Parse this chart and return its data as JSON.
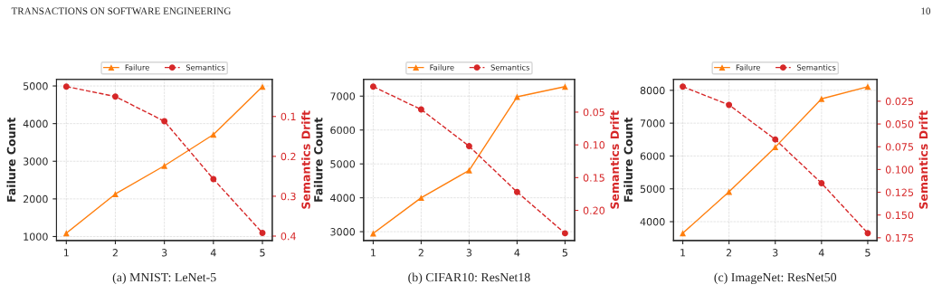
{
  "chart_data": [
    {
      "type": "line",
      "subtitle": "(a) MNIST: LeNet-5",
      "annotations": [
        "TRANSACTIONS ON SOFTWARE ENGINEERING"
      ],
      "ylabel": "Failure Count",
      "y2label": "Semantics Drift",
      "x": [
        1,
        2,
        3,
        4,
        5
      ],
      "xlim": [
        0.8,
        5.2
      ],
      "xticks": [
        1,
        2,
        3,
        4,
        5
      ],
      "ylim": [
        895,
        5175
      ],
      "yticks": [
        1000,
        2000,
        3000,
        4000,
        5000
      ],
      "y2lim": [
        0.411,
        0.007
      ],
      "y2ticks": [
        0.1,
        0.2,
        0.3,
        0.4
      ],
      "grid": true,
      "legend": "top",
      "series": [
        {
          "name": "Failure",
          "color": "#ff7f0e",
          "marker": "triangle",
          "line_style": "solid",
          "values": [
            1090,
            2130,
            2880,
            3710,
            4980
          ]
        },
        {
          "name": "Semantics",
          "color": "#d62728",
          "marker": "circle",
          "line_style": "dashed",
          "axis": "y2",
          "values": [
            0.025,
            0.05,
            0.112,
            0.257,
            0.392
          ]
        }
      ]
    },
    {
      "type": "line",
      "subtitle": "(b) CIFAR10: ResNet18",
      "ylabel": "Failure Count",
      "y2label": "Semantics Drift",
      "x": [
        1,
        2,
        3,
        4,
        5
      ],
      "xlim": [
        0.8,
        5.2
      ],
      "xticks": [
        1,
        2,
        3,
        4,
        5
      ],
      "ylim": [
        2740,
        7494
      ],
      "yticks": [
        3000,
        4000,
        5000,
        6000,
        7000
      ],
      "y2lim": [
        0.246,
        0.0
      ],
      "y2ticks": [
        {
          "value": 0.05,
          "label": "0.05"
        },
        {
          "value": 0.1,
          "label": "0.10"
        },
        {
          "value": 0.15,
          "label": "0.15"
        },
        {
          "value": 0.2,
          "label": "0.20"
        }
      ],
      "grid": true,
      "legend": "top",
      "series": [
        {
          "name": "Failure",
          "color": "#ff7f0e",
          "marker": "triangle",
          "line_style": "solid",
          "values": [
            2950,
            4000,
            4810,
            6980,
            7280
          ]
        },
        {
          "name": "Semantics",
          "color": "#d62728",
          "marker": "circle",
          "line_style": "dashed",
          "axis": "y2",
          "values": [
            0.011,
            0.046,
            0.102,
            0.172,
            0.235
          ]
        }
      ]
    },
    {
      "type": "line",
      "subtitle": "(c) ImageNet: ResNet50",
      "annotations": [
        "10"
      ],
      "ylabel": "Failure Count",
      "y2label": "Semantics Drift",
      "x": [
        1,
        2,
        3,
        4,
        5
      ],
      "xlim": [
        0.8,
        5.2
      ],
      "xticks": [
        1,
        2,
        3,
        4,
        5
      ],
      "ylim": [
        3427,
        8333
      ],
      "yticks": [
        4000,
        5000,
        6000,
        7000,
        8000
      ],
      "y2lim": [
        0.178,
        0.001
      ],
      "y2ticks": [
        0.025,
        {
          "value": 0.05,
          "label": "0.050"
        },
        0.075,
        {
          "value": 0.1,
          "label": "0.100"
        },
        0.125,
        {
          "value": 0.15,
          "label": "0.150"
        },
        0.175
      ],
      "grid": true,
      "legend": "top",
      "series": [
        {
          "name": "Failure",
          "color": "#ff7f0e",
          "marker": "triangle",
          "line_style": "solid",
          "values": [
            3650,
            4910,
            6270,
            7740,
            8110
          ]
        },
        {
          "name": "Semantics",
          "color": "#d62728",
          "marker": "circle",
          "line_style": "dashed",
          "axis": "y2",
          "values": [
            0.009,
            0.029,
            0.067,
            0.115,
            0.17
          ]
        }
      ]
    }
  ]
}
